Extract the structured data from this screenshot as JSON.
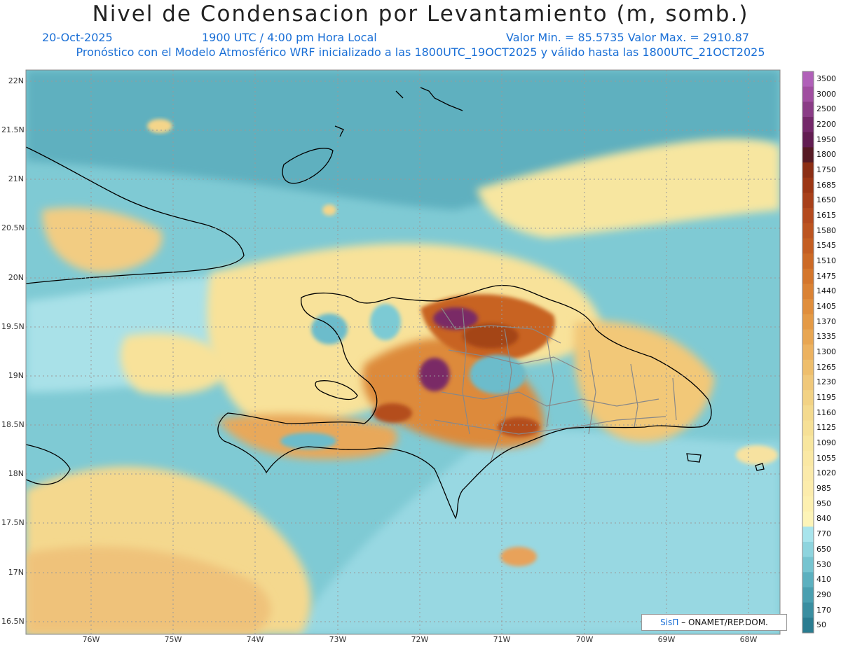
{
  "title": "Nivel de Condensacion por Levantamiento (m, somb.)",
  "date": "20-Oct-2025",
  "time": "1900 UTC / 4:00 pm Hora Local",
  "minmax": "Valor Min. = 85.5735   Valor Max. = 2910.87",
  "model_info": "Pronóstico con el Modelo Atmosférico WRF inicializado a las 1800UTC_19OCT2025 y válido hasta las  1800UTC_21OCT2025",
  "lat_labels": [
    "22N",
    "21.5N",
    "21N",
    "20.5N",
    "20N",
    "19.5N",
    "19N",
    "18.5N",
    "18N",
    "17.5N",
    "17N",
    "16.5N"
  ],
  "lon_labels": [
    "76W",
    "75W",
    "74W",
    "73W",
    "72W",
    "71W",
    "70W",
    "69W",
    "68W"
  ],
  "colorbar": {
    "levels": [
      "3500",
      "3000",
      "2500",
      "2200",
      "1950",
      "1800",
      "1750",
      "1685",
      "1650",
      "1615",
      "1580",
      "1545",
      "1510",
      "1475",
      "1440",
      "1405",
      "1370",
      "1335",
      "1300",
      "1265",
      "1230",
      "1195",
      "1160",
      "1125",
      "1090",
      "1055",
      "1020",
      "985",
      "950",
      "840",
      "770",
      "650",
      "530",
      "410",
      "290",
      "170",
      "50"
    ],
    "colors": [
      "#b060b8",
      "#a04ea0",
      "#8a3c86",
      "#74286a",
      "#621d52",
      "#561a24",
      "#8b2e14",
      "#9c3614",
      "#a8401a",
      "#b44a1e",
      "#bc5420",
      "#c45e22",
      "#cc6a26",
      "#d4762c",
      "#da8234",
      "#e08e3c",
      "#e49a46",
      "#e8a652",
      "#ecb260",
      "#eebe6c",
      "#f0c87a",
      "#f2d284",
      "#f4da8e",
      "#f6e096",
      "#f8e69e",
      "#fae8a4",
      "#fbeaaa",
      "#fcecac",
      "#fdf0b0",
      "#fdf4b8",
      "#a8e4ec",
      "#8ed4de",
      "#76c4d0",
      "#5cb0bf",
      "#4a9fb0",
      "#3a8ea0",
      "#2a7c90"
    ]
  },
  "credit": {
    "brand": "SisΠ",
    "text": " – ONAMET/REP.DOM."
  },
  "colors": {
    "sea_teal": "#79c8d2",
    "land_low": "#f8e49c",
    "coast": "#000000",
    "provinces": "#888888",
    "grid": "#9a9a9a"
  }
}
